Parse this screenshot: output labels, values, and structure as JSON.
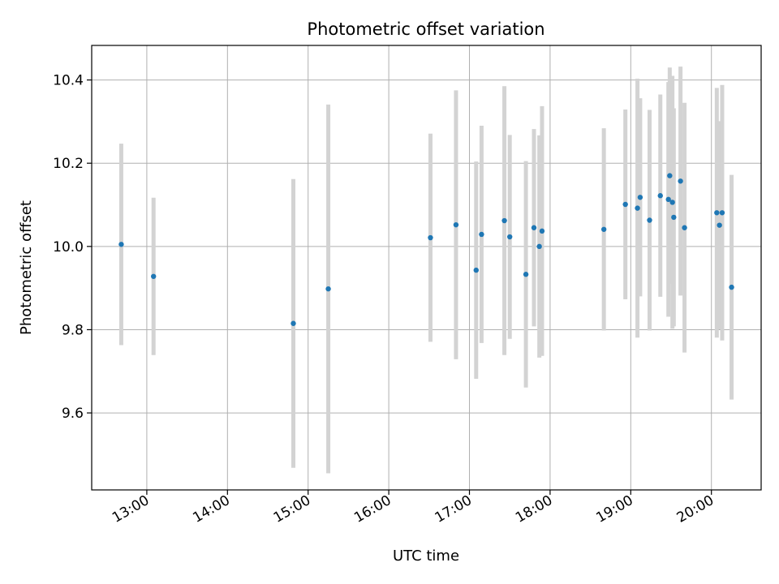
{
  "chart_data": {
    "type": "scatter",
    "title": "Photometric offset variation",
    "xlabel": "UTC time",
    "ylabel": "Photometric offset",
    "x_axis_kind": "time (hours UTC)",
    "xlim": [
      "12:19",
      "20:37"
    ],
    "ylim": [
      9.415,
      10.483
    ],
    "grid": true,
    "x_ticks": [
      "13:00",
      "14:00",
      "15:00",
      "16:00",
      "17:00",
      "18:00",
      "19:00",
      "20:00"
    ],
    "y_ticks": [
      9.6,
      9.8,
      10.0,
      10.2,
      10.4
    ],
    "y_tick_labels": [
      "9.6",
      "9.8",
      "10.0",
      "10.2",
      "10.4"
    ],
    "point_color": "#1f77b4",
    "errorbar_color": "#d3d3d3",
    "points": [
      {
        "x": "12:41",
        "y": 10.005,
        "yerr": 0.242
      },
      {
        "x": "13:05",
        "y": 9.928,
        "yerr": 0.189
      },
      {
        "x": "14:49",
        "y": 9.815,
        "yerr": 0.347
      },
      {
        "x": "15:15",
        "y": 9.898,
        "yerr": 0.443
      },
      {
        "x": "16:31",
        "y": 10.021,
        "yerr": 0.25
      },
      {
        "x": "16:50",
        "y": 10.052,
        "yerr": 0.323
      },
      {
        "x": "17:05",
        "y": 9.943,
        "yerr": 0.261
      },
      {
        "x": "17:09",
        "y": 10.029,
        "yerr": 0.261
      },
      {
        "x": "17:26",
        "y": 10.062,
        "yerr": 0.323
      },
      {
        "x": "17:30",
        "y": 10.023,
        "yerr": 0.245
      },
      {
        "x": "17:42",
        "y": 9.933,
        "yerr": 0.272
      },
      {
        "x": "17:48",
        "y": 10.045,
        "yerr": 0.237
      },
      {
        "x": "17:52",
        "y": 10.0,
        "yerr": 0.267
      },
      {
        "x": "17:54",
        "y": 10.037,
        "yerr": 0.3
      },
      {
        "x": "18:40",
        "y": 10.041,
        "yerr": 0.243
      },
      {
        "x": "18:56",
        "y": 10.101,
        "yerr": 0.228
      },
      {
        "x": "19:05",
        "y": 10.092,
        "yerr": 0.311
      },
      {
        "x": "19:07",
        "y": 10.118,
        "yerr": 0.238
      },
      {
        "x": "19:14",
        "y": 10.063,
        "yerr": 0.265
      },
      {
        "x": "19:22",
        "y": 10.122,
        "yerr": 0.243
      },
      {
        "x": "19:28",
        "y": 10.113,
        "yerr": 0.282
      },
      {
        "x": "19:29",
        "y": 10.17,
        "yerr": 0.26
      },
      {
        "x": "19:31",
        "y": 10.106,
        "yerr": 0.304
      },
      {
        "x": "19:32",
        "y": 10.07,
        "yerr": 0.262
      },
      {
        "x": "19:37",
        "y": 10.157,
        "yerr": 0.275
      },
      {
        "x": "19:40",
        "y": 10.045,
        "yerr": 0.3
      },
      {
        "x": "20:04",
        "y": 10.081,
        "yerr": 0.3
      },
      {
        "x": "20:06",
        "y": 10.051,
        "yerr": 0.25
      },
      {
        "x": "20:08",
        "y": 10.081,
        "yerr": 0.307
      },
      {
        "x": "20:15",
        "y": 9.902,
        "yerr": 0.27
      }
    ]
  }
}
